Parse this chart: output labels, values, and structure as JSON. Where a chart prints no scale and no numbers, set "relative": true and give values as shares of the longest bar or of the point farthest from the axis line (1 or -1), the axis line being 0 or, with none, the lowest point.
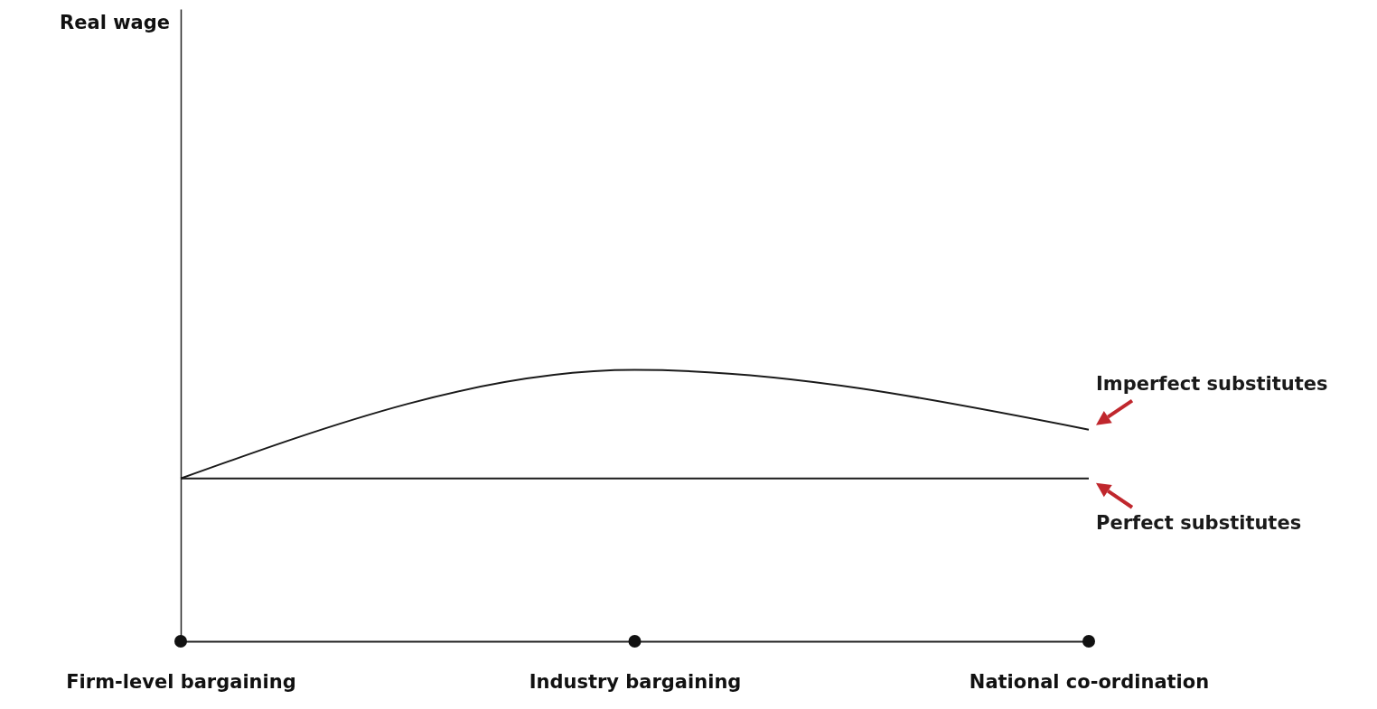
{
  "chart_data": {
    "type": "line",
    "relative": true,
    "annotations": [
      "Real wage"
    ],
    "categories": [
      "Firm-level bargaining",
      "Industry bargaining",
      "National co-ordination"
    ],
    "series": [
      {
        "name": "Imperfect substitutes",
        "color": "#1a1a1a",
        "values": [
          0.6,
          1,
          0.78
        ]
      },
      {
        "name": "Perfect substitutes",
        "color": "#1a1a1a",
        "values": [
          0.6,
          0.6,
          0.6
        ]
      }
    ]
  }
}
